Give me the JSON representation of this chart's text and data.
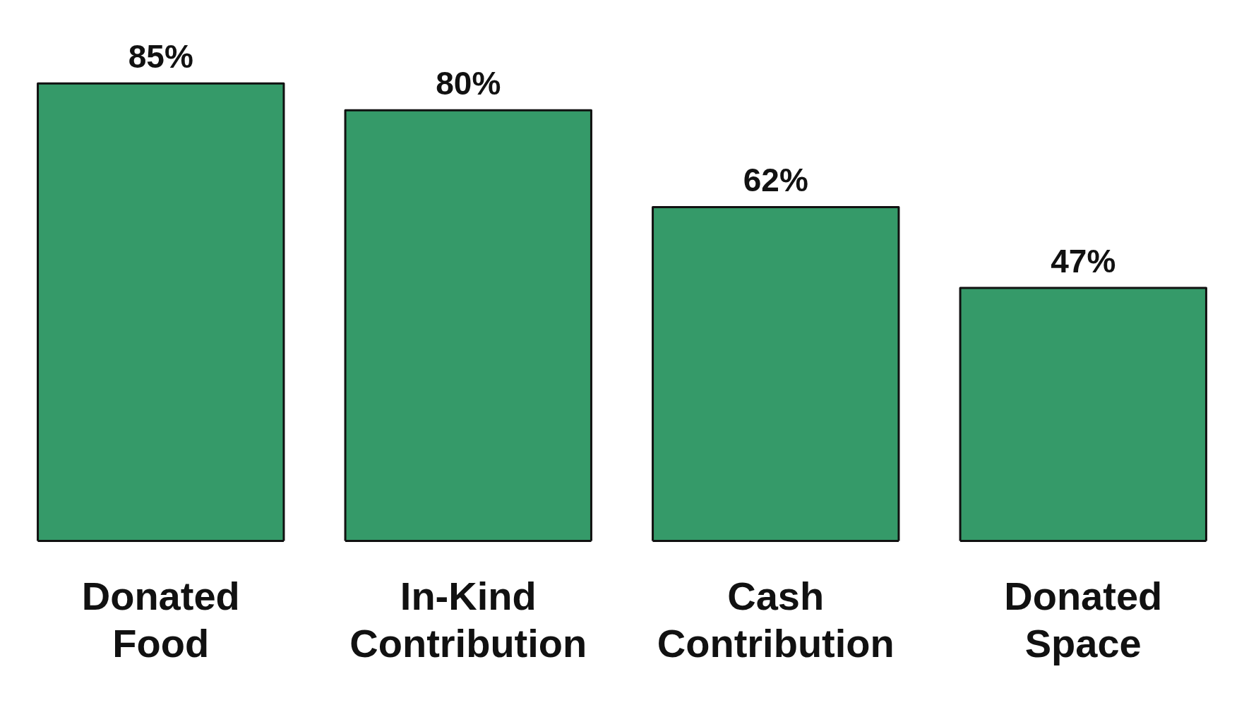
{
  "chart_data": {
    "type": "bar",
    "categories": [
      "Donated Food",
      "In-Kind Contribution",
      "Cash Contribution",
      "Donated Space"
    ],
    "values": [
      85,
      80,
      62,
      47
    ],
    "value_labels": [
      "85%",
      "80%",
      "62%",
      "47%"
    ],
    "color": "#359a69"
  }
}
